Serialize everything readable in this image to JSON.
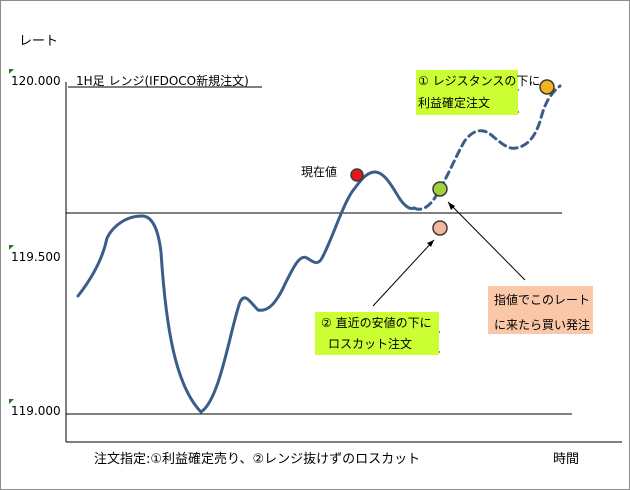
{
  "axis": {
    "y_title": "レート",
    "x_title": "時間",
    "ticks": [
      "120.000",
      "119.500",
      "119.000"
    ]
  },
  "chart_title": "1H足 レンジ(IFDOCO新規注文)",
  "labels": {
    "current_price": "現在値",
    "footer": "注文指定:①利益確定売り、②レンジ抜けずのロスカット"
  },
  "callouts": {
    "take_profit": {
      "line1": "① レジスタンスの下に",
      "line2": "利益確定注文"
    },
    "stop_loss": {
      "line1": "② 直近の安値の下に",
      "line2": "ロスカット注文"
    },
    "entry": {
      "line1": "指値でこのレート",
      "line2": "に来たら買い発注"
    }
  },
  "colors": {
    "price_line": "#3b5d8a",
    "current_dot": "#e8141e",
    "entry_dot": "#9ed13a",
    "stop_dot": "#f4b8a0",
    "target_dot": "#f2b31b",
    "callout_green": "#ccff33",
    "callout_peach": "#fac8a8"
  }
}
